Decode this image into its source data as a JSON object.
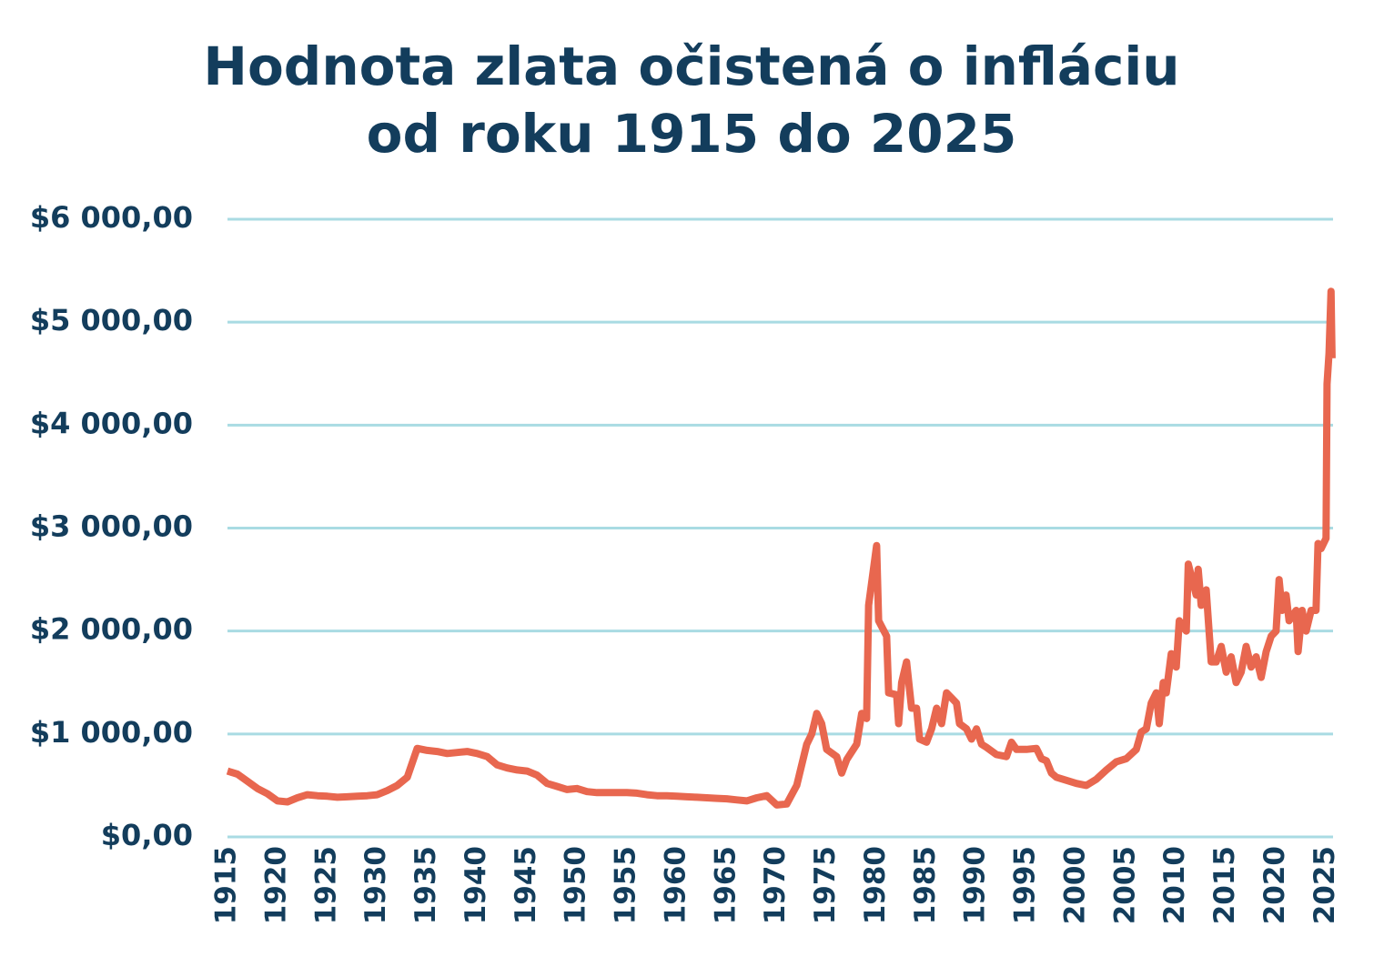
{
  "chart_data": {
    "type": "line",
    "title": "Hodnota zlata očistená o infláciu",
    "subtitle": "od roku 1915 do 2025",
    "x": [
      1915,
      1916,
      1917,
      1918,
      1919,
      1920,
      1921,
      1922,
      1923,
      1924,
      1925,
      1926,
      1927,
      1928,
      1929,
      1930,
      1931,
      1932,
      1933,
      1934,
      1935,
      1936,
      1937,
      1938,
      1939,
      1940,
      1941,
      1942,
      1943,
      1944,
      1945,
      1946,
      1947,
      1948,
      1949,
      1950,
      1951,
      1952,
      1953,
      1954,
      1955,
      1956,
      1957,
      1958,
      1959,
      1960,
      1961,
      1962,
      1963,
      1964,
      1965,
      1966,
      1967,
      1968,
      1969,
      1970,
      1971,
      1972,
      1973,
      1973.5,
      1974,
      1974.5,
      1975,
      1976,
      1976.5,
      1977,
      1978,
      1978.5,
      1979,
      1979.2,
      1980,
      1980.2,
      1981,
      1981.2,
      1982,
      1982.2,
      1982.5,
      1983,
      1983.5,
      1984,
      1984.3,
      1985,
      1985.5,
      1986,
      1986.5,
      1987,
      1987.5,
      1988,
      1988.3,
      1989,
      1989.5,
      1990,
      1990.5,
      1991,
      1992,
      1993,
      1993.5,
      1994,
      1995,
      1996,
      1996.5,
      1997,
      1997.5,
      1998,
      1999,
      2000,
      2001,
      2002,
      2003,
      2004,
      2005,
      2006,
      2006.5,
      2007,
      2007.5,
      2008,
      2008.3,
      2008.7,
      2009,
      2009.5,
      2010,
      2010.3,
      2011,
      2011.2,
      2012,
      2012.2,
      2012.5,
      2013,
      2013.5,
      2014,
      2014.5,
      2015,
      2015.5,
      2016,
      2016.5,
      2017,
      2017.5,
      2018,
      2018.5,
      2019,
      2019.5,
      2020,
      2020.3,
      2020.6,
      2021,
      2021.3,
      2022,
      2022.2,
      2022.6,
      2023,
      2023.5,
      2024,
      2024.2,
      2024.5,
      2025,
      2025.1,
      2025.3,
      2025.5,
      2025.6
    ],
    "series": [
      {
        "name": "Hodnota zlata",
        "color": "#e8674f",
        "values": [
          640,
          610,
          540,
          470,
          420,
          350,
          340,
          380,
          410,
          400,
          395,
          385,
          390,
          395,
          400,
          410,
          450,
          500,
          580,
          860,
          840,
          830,
          810,
          820,
          830,
          810,
          780,
          700,
          670,
          650,
          640,
          600,
          520,
          490,
          460,
          470,
          440,
          430,
          430,
          430,
          430,
          425,
          410,
          400,
          400,
          395,
          390,
          385,
          380,
          375,
          370,
          360,
          350,
          380,
          400,
          310,
          320,
          500,
          900,
          1000,
          1200,
          1100,
          850,
          780,
          620,
          750,
          900,
          1200,
          1150,
          2250,
          2830,
          2100,
          1950,
          1400,
          1380,
          1100,
          1500,
          1700,
          1250,
          1250,
          950,
          920,
          1050,
          1250,
          1100,
          1400,
          1350,
          1300,
          1100,
          1050,
          950,
          1050,
          900,
          870,
          800,
          780,
          920,
          850,
          850,
          860,
          760,
          740,
          620,
          580,
          550,
          520,
          500,
          560,
          650,
          730,
          760,
          850,
          1020,
          1050,
          1300,
          1400,
          1100,
          1500,
          1400,
          1780,
          1650,
          2100,
          2000,
          2650,
          2350,
          2600,
          2250,
          2400,
          1700,
          1700,
          1850,
          1600,
          1750,
          1500,
          1600,
          1850,
          1650,
          1750,
          1550,
          1800,
          1950,
          2000,
          2500,
          2200,
          2350,
          2100,
          2200,
          1800,
          2200,
          2000,
          2200,
          2200,
          2850,
          2800,
          2900,
          4400,
          4700,
          5300,
          4650
        ]
      }
    ],
    "xlim": [
      1915,
      2025.7
    ],
    "xticks": [
      1915,
      1920,
      1925,
      1930,
      1935,
      1940,
      1945,
      1950,
      1955,
      1960,
      1965,
      1970,
      1975,
      1980,
      1985,
      1990,
      1995,
      2000,
      2005,
      2010,
      2015,
      2020,
      2025
    ],
    "ylim": [
      0,
      6000
    ],
    "yticks": [
      {
        "value": 0,
        "label": "$0,00"
      },
      {
        "value": 1000,
        "label": "$1 000,00"
      },
      {
        "value": 2000,
        "label": "$2 000,00"
      },
      {
        "value": 3000,
        "label": "$3 000,00"
      },
      {
        "value": 4000,
        "label": "$4 000,00"
      },
      {
        "value": 5000,
        "label": "$5 000,00"
      },
      {
        "value": 6000,
        "label": "$6 000,00"
      }
    ],
    "grid": true
  }
}
